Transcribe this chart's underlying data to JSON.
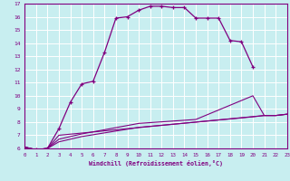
{
  "xlabel": "Windchill (Refroidissement éolien,°C)",
  "background_color": "#c8eef0",
  "grid_color": "#ffffff",
  "line_color": "#800080",
  "xlim": [
    0,
    23
  ],
  "ylim": [
    6,
    17
  ],
  "xticks": [
    0,
    1,
    2,
    3,
    4,
    5,
    6,
    7,
    8,
    9,
    10,
    11,
    12,
    13,
    14,
    15,
    16,
    17,
    18,
    19,
    20,
    21,
    22,
    23
  ],
  "yticks": [
    6,
    7,
    8,
    9,
    10,
    11,
    12,
    13,
    14,
    15,
    16,
    17
  ],
  "series": [
    {
      "x": [
        0,
        1,
        2,
        3,
        4,
        5,
        6,
        7,
        8,
        9,
        10,
        11,
        12,
        13,
        14,
        15,
        16,
        17,
        18,
        19,
        20
      ],
      "y": [
        6.1,
        5.9,
        6.0,
        7.5,
        9.5,
        10.9,
        11.1,
        13.3,
        15.9,
        16.0,
        16.5,
        16.8,
        16.8,
        16.7,
        16.7,
        15.9,
        15.9,
        15.9,
        14.2,
        14.1,
        12.2
      ],
      "marker": true
    },
    {
      "x": [
        0,
        1,
        2,
        3,
        21,
        22,
        23
      ],
      "y": [
        6.1,
        5.9,
        6.0,
        7.0,
        8.5,
        8.5,
        8.6
      ],
      "marker": false
    },
    {
      "x": [
        0,
        1,
        2,
        3,
        5,
        10,
        15,
        20,
        21,
        22,
        23
      ],
      "y": [
        6.1,
        5.9,
        6.0,
        6.7,
        7.1,
        7.9,
        8.2,
        10.0,
        8.5,
        8.5,
        8.6
      ],
      "marker": false
    },
    {
      "x": [
        0,
        1,
        2,
        3,
        5,
        10,
        15,
        20,
        21,
        22,
        23
      ],
      "y": [
        6.1,
        5.9,
        6.0,
        6.5,
        6.9,
        7.6,
        8.0,
        8.4,
        8.5,
        8.5,
        8.6
      ],
      "marker": false
    }
  ]
}
